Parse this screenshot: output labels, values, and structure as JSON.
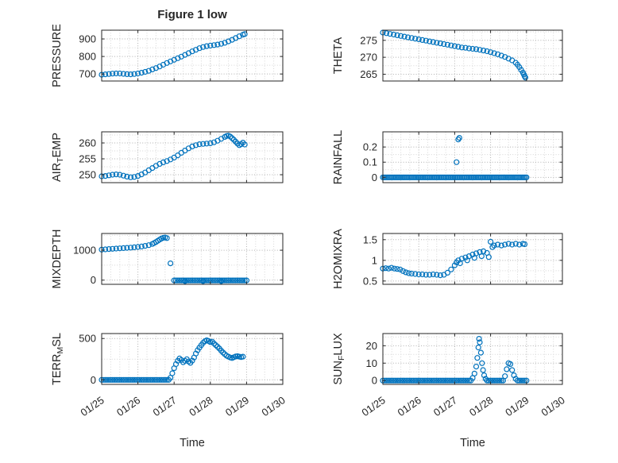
{
  "figure": {
    "title": "Figure 1 low",
    "xlabel": "Time",
    "marker_color": "#0072BD",
    "axis_color": "#262626",
    "grid_major": "#b0b0b0",
    "grid_minor": "#d6d6d6",
    "background": "#ffffff"
  },
  "x_axis": {
    "min": 25,
    "max": 30,
    "minor_step": 0.25,
    "ticks": [
      25,
      26,
      27,
      28,
      29,
      30
    ],
    "tick_labels": [
      "01/25",
      "01/26",
      "01/27",
      "01/28",
      "01/29",
      "01/30"
    ]
  },
  "chart_data": [
    {
      "type": "scatter",
      "name": "pressure",
      "row": 0,
      "col": 0,
      "ylabel": "PRESSURE",
      "ylabel_parts": [
        {
          "t": "PRESSURE"
        }
      ],
      "ylim": [
        660,
        950
      ],
      "yticks": [
        700,
        800,
        900
      ],
      "ytick_labels": [
        "700",
        "800",
        "900"
      ],
      "points": [
        [
          25,
          696
        ],
        [
          25.1,
          698
        ],
        [
          25.2,
          700
        ],
        [
          25.3,
          702
        ],
        [
          25.4,
          703
        ],
        [
          25.5,
          703
        ],
        [
          25.6,
          701
        ],
        [
          25.7,
          699
        ],
        [
          25.8,
          698
        ],
        [
          25.9,
          700
        ],
        [
          26,
          703
        ],
        [
          26.1,
          707
        ],
        [
          26.2,
          712
        ],
        [
          26.3,
          718
        ],
        [
          26.4,
          726
        ],
        [
          26.5,
          734
        ],
        [
          26.6,
          743
        ],
        [
          26.7,
          753
        ],
        [
          26.8,
          763
        ],
        [
          26.9,
          772
        ],
        [
          27,
          781
        ],
        [
          27.1,
          790
        ],
        [
          27.2,
          799
        ],
        [
          27.3,
          809
        ],
        [
          27.4,
          819
        ],
        [
          27.5,
          829
        ],
        [
          27.6,
          838
        ],
        [
          27.7,
          847
        ],
        [
          27.8,
          854
        ],
        [
          27.9,
          859
        ],
        [
          28,
          862
        ],
        [
          28.1,
          865
        ],
        [
          28.2,
          868
        ],
        [
          28.3,
          872
        ],
        [
          28.4,
          878
        ],
        [
          28.5,
          886
        ],
        [
          28.6,
          895
        ],
        [
          28.7,
          905
        ],
        [
          28.8,
          915
        ],
        [
          28.9,
          924
        ],
        [
          28.95,
          928
        ]
      ]
    },
    {
      "type": "scatter",
      "name": "theta",
      "row": 0,
      "col": 1,
      "ylabel": "THETA",
      "ylabel_parts": [
        {
          "t": "THETA"
        }
      ],
      "ylim": [
        263,
        278
      ],
      "yticks": [
        265,
        270,
        275
      ],
      "ytick_labels": [
        "265",
        "270",
        "275"
      ],
      "points": [
        [
          25,
          277.3
        ],
        [
          25.1,
          277.1
        ],
        [
          25.2,
          276.9
        ],
        [
          25.3,
          276.7
        ],
        [
          25.4,
          276.5
        ],
        [
          25.5,
          276.3
        ],
        [
          25.6,
          276.1
        ],
        [
          25.7,
          275.9
        ],
        [
          25.8,
          275.7
        ],
        [
          25.9,
          275.5
        ],
        [
          26,
          275.3
        ],
        [
          26.1,
          275.1
        ],
        [
          26.2,
          274.9
        ],
        [
          26.3,
          274.7
        ],
        [
          26.4,
          274.5
        ],
        [
          26.5,
          274.3
        ],
        [
          26.6,
          274.1
        ],
        [
          26.7,
          273.9
        ],
        [
          26.8,
          273.7
        ],
        [
          26.9,
          273.5
        ],
        [
          27,
          273.3
        ],
        [
          27.1,
          273.1
        ],
        [
          27.2,
          272.9
        ],
        [
          27.3,
          272.8
        ],
        [
          27.4,
          272.6
        ],
        [
          27.5,
          272.5
        ],
        [
          27.6,
          272.4
        ],
        [
          27.7,
          272.2
        ],
        [
          27.8,
          272
        ],
        [
          27.9,
          271.8
        ],
        [
          28,
          271.5
        ],
        [
          28.1,
          271.2
        ],
        [
          28.2,
          270.9
        ],
        [
          28.3,
          270.5
        ],
        [
          28.4,
          270.1
        ],
        [
          28.5,
          269.6
        ],
        [
          28.6,
          269.1
        ],
        [
          28.7,
          268.4
        ],
        [
          28.75,
          267.8
        ],
        [
          28.8,
          267.1
        ],
        [
          28.85,
          266.3
        ],
        [
          28.9,
          265.5
        ],
        [
          28.93,
          264.9
        ],
        [
          28.95,
          264.4
        ],
        [
          28.97,
          264
        ]
      ]
    },
    {
      "type": "scatter",
      "name": "airtemp",
      "row": 1,
      "col": 0,
      "ylabel": "AIR_TEMP",
      "ylabel_parts": [
        {
          "t": "AIR"
        },
        {
          "t": "T",
          "sub": true
        },
        {
          "t": "EMP"
        }
      ],
      "ylim": [
        247.5,
        263.5
      ],
      "yticks": [
        250,
        255,
        260
      ],
      "ytick_labels": [
        "250",
        "255",
        "260"
      ],
      "points": [
        [
          25,
          249.5
        ],
        [
          25.1,
          249.6
        ],
        [
          25.2,
          249.8
        ],
        [
          25.3,
          250
        ],
        [
          25.4,
          250.1
        ],
        [
          25.5,
          250
        ],
        [
          25.6,
          249.7
        ],
        [
          25.7,
          249.4
        ],
        [
          25.8,
          249.2
        ],
        [
          25.9,
          249.3
        ],
        [
          26,
          249.6
        ],
        [
          26.1,
          250.1
        ],
        [
          26.2,
          250.7
        ],
        [
          26.3,
          251.4
        ],
        [
          26.4,
          252.1
        ],
        [
          26.5,
          252.8
        ],
        [
          26.6,
          253.4
        ],
        [
          26.7,
          253.9
        ],
        [
          26.8,
          254.3
        ],
        [
          26.9,
          254.8
        ],
        [
          27,
          255.4
        ],
        [
          27.1,
          256.1
        ],
        [
          27.2,
          256.9
        ],
        [
          27.3,
          257.6
        ],
        [
          27.4,
          258.3
        ],
        [
          27.5,
          258.9
        ],
        [
          27.6,
          259.3
        ],
        [
          27.7,
          259.6
        ],
        [
          27.8,
          259.7
        ],
        [
          27.9,
          259.8
        ],
        [
          28,
          259.9
        ],
        [
          28.1,
          260.2
        ],
        [
          28.2,
          260.7
        ],
        [
          28.3,
          261.3
        ],
        [
          28.4,
          261.9
        ],
        [
          28.45,
          262.2
        ],
        [
          28.5,
          262.3
        ],
        [
          28.55,
          262
        ],
        [
          28.6,
          261.5
        ],
        [
          28.65,
          261
        ],
        [
          28.7,
          260.4
        ],
        [
          28.75,
          259.8
        ],
        [
          28.8,
          259.3
        ],
        [
          28.85,
          259.6
        ],
        [
          28.9,
          260.1
        ],
        [
          28.95,
          259.5
        ]
      ]
    },
    {
      "type": "scatter",
      "name": "rainfall",
      "row": 1,
      "col": 1,
      "ylabel": "RAINFALL",
      "ylabel_parts": [
        {
          "t": "RAINFALL"
        }
      ],
      "ylim": [
        -0.035,
        0.3
      ],
      "yticks": [
        0,
        0.1,
        0.2
      ],
      "ytick_labels": [
        "0",
        "0.1",
        "0.2"
      ],
      "runs": [
        {
          "from": 25,
          "to": 29,
          "step": 0.04,
          "y": 0
        }
      ],
      "points": [
        [
          27.05,
          0.1
        ],
        [
          27.1,
          0.25
        ],
        [
          27.13,
          0.26
        ]
      ]
    },
    {
      "type": "scatter",
      "name": "mixdepth",
      "row": 2,
      "col": 0,
      "ylabel": "MIXDEPTH",
      "ylabel_parts": [
        {
          "t": "MIXDEPTH"
        }
      ],
      "ylim": [
        -140,
        1560
      ],
      "yticks": [
        0,
        1000
      ],
      "ytick_labels": [
        "0",
        "1000"
      ],
      "runs": [
        {
          "from": 27,
          "to": 29,
          "step": 0.05,
          "y": -10
        }
      ],
      "points": [
        [
          25,
          1020
        ],
        [
          25.1,
          1030
        ],
        [
          25.2,
          1040
        ],
        [
          25.3,
          1048
        ],
        [
          25.4,
          1055
        ],
        [
          25.5,
          1062
        ],
        [
          25.6,
          1070
        ],
        [
          25.7,
          1078
        ],
        [
          25.8,
          1088
        ],
        [
          25.9,
          1098
        ],
        [
          26,
          1108
        ],
        [
          26.1,
          1125
        ],
        [
          26.2,
          1145
        ],
        [
          26.3,
          1170
        ],
        [
          26.4,
          1210
        ],
        [
          26.45,
          1240
        ],
        [
          26.5,
          1275
        ],
        [
          26.55,
          1315
        ],
        [
          26.6,
          1355
        ],
        [
          26.65,
          1390
        ],
        [
          26.7,
          1415
        ],
        [
          26.75,
          1425
        ],
        [
          26.8,
          1405
        ],
        [
          26.9,
          560
        ],
        [
          27.3,
          -35
        ],
        [
          27.8,
          -30
        ],
        [
          28.3,
          -35
        ]
      ]
    },
    {
      "type": "scatter",
      "name": "h2omixra",
      "row": 2,
      "col": 1,
      "ylabel": "H2OMIXRA",
      "ylabel_parts": [
        {
          "t": "H2OMIXRA"
        }
      ],
      "ylim": [
        0.42,
        1.65
      ],
      "yticks": [
        0.5,
        1,
        1.5
      ],
      "ytick_labels": [
        "0.5",
        "1",
        "1.5"
      ],
      "points": [
        [
          25,
          0.8
        ],
        [
          25.08,
          0.81
        ],
        [
          25.16,
          0.8
        ],
        [
          25.24,
          0.82
        ],
        [
          25.32,
          0.8
        ],
        [
          25.4,
          0.79
        ],
        [
          25.48,
          0.78
        ],
        [
          25.56,
          0.74
        ],
        [
          25.64,
          0.71
        ],
        [
          25.72,
          0.69
        ],
        [
          25.8,
          0.68
        ],
        [
          25.9,
          0.67
        ],
        [
          26,
          0.66
        ],
        [
          26.1,
          0.66
        ],
        [
          26.2,
          0.65
        ],
        [
          26.3,
          0.65
        ],
        [
          26.4,
          0.66
        ],
        [
          26.5,
          0.65
        ],
        [
          26.6,
          0.64
        ],
        [
          26.7,
          0.65
        ],
        [
          26.8,
          0.7
        ],
        [
          26.9,
          0.78
        ],
        [
          27,
          0.88
        ],
        [
          27.05,
          0.95
        ],
        [
          27.1,
          1
        ],
        [
          27.15,
          0.93
        ],
        [
          27.2,
          1.04
        ],
        [
          27.3,
          1.07
        ],
        [
          27.35,
          1
        ],
        [
          27.4,
          1.1
        ],
        [
          27.5,
          1.14
        ],
        [
          27.55,
          1.06
        ],
        [
          27.6,
          1.17
        ],
        [
          27.7,
          1.2
        ],
        [
          27.75,
          1.1
        ],
        [
          27.8,
          1.22
        ],
        [
          27.9,
          1.18
        ],
        [
          27.95,
          1.08
        ],
        [
          28,
          1.45
        ],
        [
          28.05,
          1.32
        ],
        [
          28.1,
          1.36
        ],
        [
          28.2,
          1.38
        ],
        [
          28.3,
          1.36
        ],
        [
          28.4,
          1.38
        ],
        [
          28.5,
          1.4
        ],
        [
          28.6,
          1.38
        ],
        [
          28.7,
          1.4
        ],
        [
          28.8,
          1.38
        ],
        [
          28.9,
          1.4
        ],
        [
          28.95,
          1.39
        ]
      ]
    },
    {
      "type": "scatter",
      "name": "terrmsl",
      "row": 3,
      "col": 0,
      "ylabel": "TERR_MSL",
      "ylabel_parts": [
        {
          "t": "TERR"
        },
        {
          "t": "M",
          "sub": true
        },
        {
          "t": "SL"
        }
      ],
      "ylim": [
        -55,
        560
      ],
      "yticks": [
        0,
        500
      ],
      "ytick_labels": [
        "0",
        "500"
      ],
      "runs": [
        {
          "from": 25,
          "to": 26.85,
          "step": 0.05,
          "y": 0
        }
      ],
      "points": [
        [
          26.9,
          25
        ],
        [
          26.95,
          80
        ],
        [
          27,
          140
        ],
        [
          27.05,
          190
        ],
        [
          27.1,
          230
        ],
        [
          27.15,
          258
        ],
        [
          27.2,
          240
        ],
        [
          27.25,
          212
        ],
        [
          27.3,
          230
        ],
        [
          27.35,
          250
        ],
        [
          27.4,
          222
        ],
        [
          27.45,
          205
        ],
        [
          27.5,
          232
        ],
        [
          27.55,
          270
        ],
        [
          27.6,
          318
        ],
        [
          27.65,
          358
        ],
        [
          27.7,
          390
        ],
        [
          27.75,
          420
        ],
        [
          27.8,
          448
        ],
        [
          27.85,
          468
        ],
        [
          27.9,
          478
        ],
        [
          27.95,
          470
        ],
        [
          28,
          456
        ],
        [
          28.05,
          462
        ],
        [
          28.1,
          440
        ],
        [
          28.15,
          420
        ],
        [
          28.2,
          400
        ],
        [
          28.25,
          378
        ],
        [
          28.3,
          352
        ],
        [
          28.35,
          330
        ],
        [
          28.4,
          310
        ],
        [
          28.45,
          292
        ],
        [
          28.5,
          280
        ],
        [
          28.55,
          270
        ],
        [
          28.6,
          264
        ],
        [
          28.65,
          274
        ],
        [
          28.7,
          282
        ],
        [
          28.75,
          286
        ],
        [
          28.8,
          280
        ],
        [
          28.85,
          276
        ],
        [
          28.9,
          280
        ]
      ]
    },
    {
      "type": "scatter",
      "name": "sunflux",
      "row": 3,
      "col": 1,
      "ylabel": "SUN_FLUX",
      "ylabel_parts": [
        {
          "t": "SUN"
        },
        {
          "t": "F",
          "sub": true
        },
        {
          "t": "LUX"
        }
      ],
      "ylim": [
        -2.2,
        27
      ],
      "yticks": [
        0,
        10,
        20
      ],
      "ytick_labels": [
        "0",
        "10",
        "20"
      ],
      "runs": [
        {
          "from": 25,
          "to": 27.45,
          "step": 0.05,
          "y": 0
        },
        {
          "from": 27.9,
          "to": 28.35,
          "step": 0.05,
          "y": 0
        },
        {
          "from": 28.75,
          "to": 29,
          "step": 0.05,
          "y": 0
        }
      ],
      "points": [
        [
          27.5,
          1.5
        ],
        [
          27.55,
          4
        ],
        [
          27.6,
          8
        ],
        [
          27.63,
          13
        ],
        [
          27.66,
          19
        ],
        [
          27.68,
          24
        ],
        [
          27.7,
          22
        ],
        [
          27.73,
          16
        ],
        [
          27.76,
          10
        ],
        [
          27.79,
          6
        ],
        [
          27.82,
          3
        ],
        [
          27.86,
          1
        ],
        [
          28.4,
          2.5
        ],
        [
          28.45,
          6.5
        ],
        [
          28.5,
          10
        ],
        [
          28.55,
          9.5
        ],
        [
          28.6,
          6
        ],
        [
          28.65,
          3
        ],
        [
          28.7,
          1
        ]
      ]
    }
  ]
}
